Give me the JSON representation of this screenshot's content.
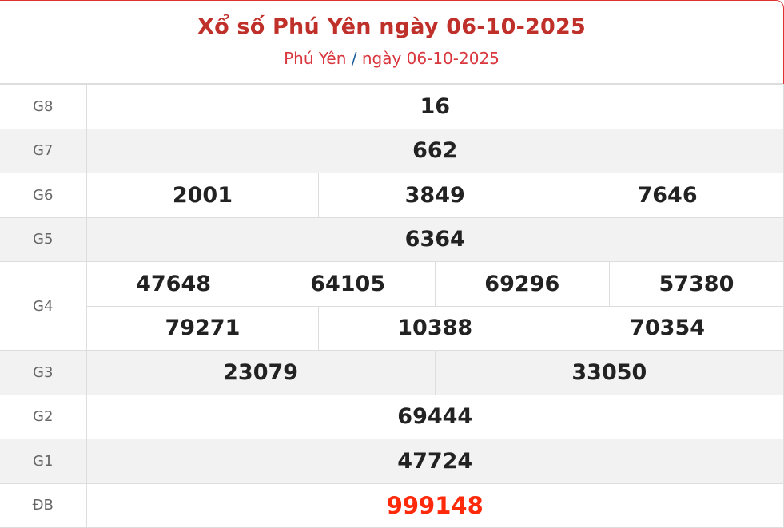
{
  "header": {
    "title": "Xổ số Phú Yên ngày 06-10-2025",
    "breadcrumb_province": "Phú Yên",
    "breadcrumb_sep": "/",
    "breadcrumb_date": "ngày 06-10-2025"
  },
  "colors": {
    "title": "#c0302a",
    "special": "#ff2a0a",
    "alt_row": "#f2f2f2"
  },
  "prizes": {
    "g8": {
      "label": "G8",
      "values": [
        "16"
      ]
    },
    "g7": {
      "label": "G7",
      "values": [
        "662"
      ]
    },
    "g6": {
      "label": "G6",
      "values": [
        "2001",
        "3849",
        "7646"
      ]
    },
    "g5": {
      "label": "G5",
      "values": [
        "6364"
      ]
    },
    "g4": {
      "label": "G4",
      "values": [
        "47648",
        "64105",
        "69296",
        "57380",
        "79271",
        "10388",
        "70354"
      ]
    },
    "g3": {
      "label": "G3",
      "values": [
        "23079",
        "33050"
      ]
    },
    "g2": {
      "label": "G2",
      "values": [
        "69444"
      ]
    },
    "g1": {
      "label": "G1",
      "values": [
        "47724"
      ]
    },
    "db": {
      "label": "ĐB",
      "values": [
        "999148"
      ]
    }
  }
}
